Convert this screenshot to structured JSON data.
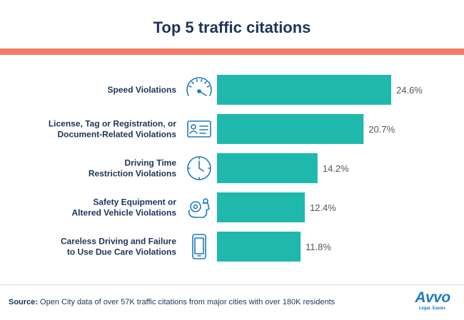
{
  "colors": {
    "bar": "#1fb8ad",
    "accent": "#f07c68",
    "title": "#1d3557",
    "icon": "#1d7ac2",
    "label": "#1d3557",
    "value": "#555555"
  },
  "chart_data": {
    "type": "bar",
    "orientation": "horizontal",
    "title": "Top 5 traffic citations",
    "value_suffix": "%",
    "categories": [
      {
        "lines": [
          "Speed Violations"
        ],
        "icon": "speedometer-icon"
      },
      {
        "lines": [
          "License, Tag or Registration, or",
          "Document-Related Violations"
        ],
        "icon": "id-card-icon"
      },
      {
        "lines": [
          "Driving Time",
          "Restriction Violations"
        ],
        "icon": "clock-icon"
      },
      {
        "lines": [
          "Safety Equipment or",
          "Altered Vehicle Violations"
        ],
        "icon": "engine-gear-icon"
      },
      {
        "lines": [
          "Careless Driving and Failure",
          "to Use Due Care Violations"
        ],
        "icon": "phone-icon"
      }
    ],
    "values": [
      24.6,
      20.7,
      14.2,
      12.4,
      11.8
    ],
    "value_labels": [
      "24.6%",
      "20.7%",
      "14.2%",
      "12.4%",
      "11.8%"
    ],
    "xlim": [
      0,
      24.6
    ],
    "grid": false,
    "legend": "none"
  },
  "footer": {
    "source_label": "Source:",
    "source_text": "Open City data of over 57K traffic citations from major cities with over 180K residents"
  },
  "logo": {
    "word": "Avvo",
    "tagline": "Legal. Easier."
  }
}
